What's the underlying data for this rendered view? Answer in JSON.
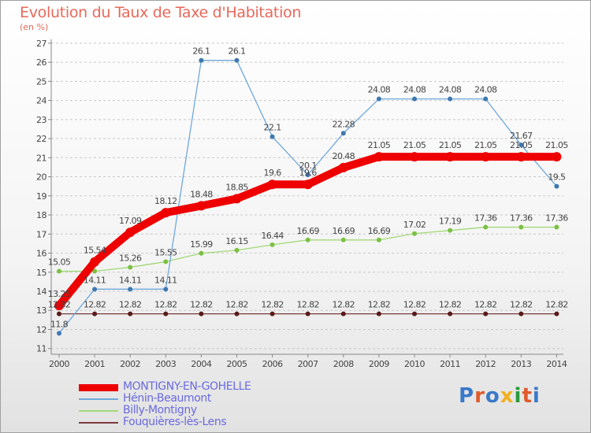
{
  "title": "Evolution du Taux de Taxe d'Habitation",
  "unit": "(en %)",
  "logo": {
    "text": "Proxiti",
    "colors": [
      "#3a78c8",
      "#e05a2a",
      "#3a78c8",
      "#f0b020",
      "#2a9a3a",
      "#e05a2a",
      "#3a78c8"
    ]
  },
  "chart_data": {
    "type": "line",
    "title": "Evolution du Taux de Taxe d'Habitation",
    "ylabel": "(en %)",
    "xlabel": "",
    "x": [
      "2000",
      "2001",
      "2002",
      "2003",
      "2004",
      "2005",
      "2006",
      "2007",
      "2008",
      "2009",
      "2010",
      "2011",
      "2012",
      "2013",
      "2014"
    ],
    "ylim": [
      10.7,
      27.2
    ],
    "yticks": [
      "11",
      "12",
      "13",
      "14",
      "15",
      "16",
      "17",
      "18",
      "19",
      "20",
      "21",
      "22",
      "23",
      "24",
      "25",
      "26",
      "27"
    ],
    "grid": "horizontal dashed",
    "legend_position": "bottom-left",
    "series": [
      {
        "name": "MONTIGNY-EN-GOHELLE",
        "color": "#ee0000",
        "line_width": 10,
        "marker_r": 6,
        "values": [
          13.25,
          15.54,
          17.09,
          18.12,
          18.48,
          18.85,
          19.6,
          19.6,
          20.48,
          21.05,
          21.05,
          21.05,
          21.05,
          21.05,
          21.05
        ],
        "labels": [
          "13.25",
          "15.54",
          "17.09",
          "18.12",
          "18.48",
          "18.85",
          "19.6",
          "19.6",
          "20.48",
          "21.05",
          "21.05",
          "21.05",
          "21.05",
          "21.05",
          "21.05"
        ]
      },
      {
        "name": "Hénin-Beaumont",
        "color": "#6fa8dc",
        "dot_color": "#3d78b0",
        "line_width": 1.3,
        "marker_r": 3,
        "values": [
          11.8,
          14.11,
          14.11,
          14.11,
          26.1,
          26.1,
          22.1,
          20.1,
          22.28,
          24.08,
          24.08,
          24.08,
          24.08,
          21.67,
          19.5
        ],
        "labels": [
          "11.8",
          "14.11",
          "14.11",
          "14.11",
          "26.1",
          "26.1",
          "22.1",
          "20.1",
          "22.28",
          "24.08",
          "24.08",
          "24.08",
          "24.08",
          "21.67",
          "19.5"
        ]
      },
      {
        "name": "Billy-Montigny",
        "color": "#a3d977",
        "dot_color": "#7cc043",
        "line_width": 1.3,
        "marker_r": 3,
        "values": [
          15.05,
          15.05,
          15.26,
          15.55,
          15.99,
          16.15,
          16.44,
          16.69,
          16.69,
          16.69,
          17.02,
          17.19,
          17.36,
          17.36,
          17.36
        ],
        "labels": [
          "15.05",
          "",
          "15.26",
          "15.55",
          "15.99",
          "16.15",
          "16.44",
          "16.69",
          "16.69",
          "16.69",
          "17.02",
          "17.19",
          "17.36",
          "17.36",
          "17.36"
        ]
      },
      {
        "name": "Fouquières-lès-Lens",
        "color": "#7a3a3a",
        "dot_color": "#5a1a1a",
        "line_width": 1.3,
        "marker_r": 3,
        "values": [
          12.82,
          12.82,
          12.82,
          12.82,
          12.82,
          12.82,
          12.82,
          12.82,
          12.82,
          12.82,
          12.82,
          12.82,
          12.82,
          12.82,
          12.82
        ],
        "labels": [
          "12.82",
          "12.82",
          "12.82",
          "12.82",
          "12.82",
          "12.82",
          "12.82",
          "12.82",
          "12.82",
          "12.82",
          "12.82",
          "12.82",
          "12.82",
          "12.82",
          "12.82"
        ]
      }
    ]
  }
}
